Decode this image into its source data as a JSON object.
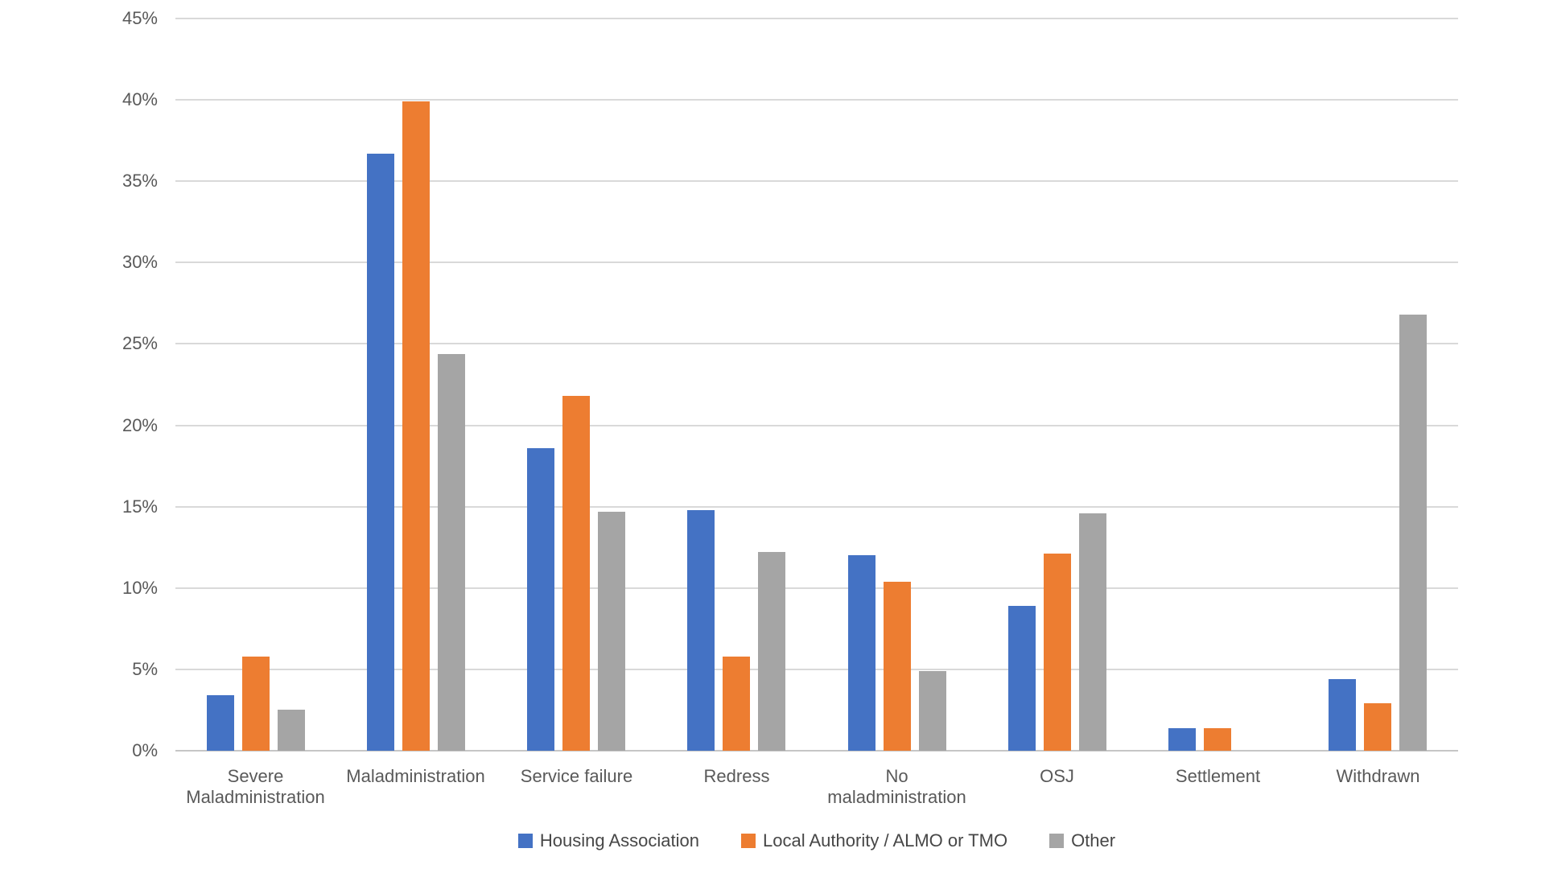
{
  "chart_data": {
    "type": "bar",
    "title": "",
    "xlabel": "",
    "ylabel": "",
    "categories": [
      "Severe Maladministration",
      "Maladministration",
      "Service failure",
      "Redress",
      "No maladministration",
      "OSJ",
      "Settlement",
      "Withdrawn"
    ],
    "category_label_lines": [
      [
        "Severe",
        "Maladministration"
      ],
      [
        "Maladministration"
      ],
      [
        "Service failure"
      ],
      [
        "Redress"
      ],
      [
        "No",
        "maladministration"
      ],
      [
        "OSJ"
      ],
      [
        "Settlement"
      ],
      [
        "Withdrawn"
      ]
    ],
    "series": [
      {
        "name": "Housing Association",
        "color": "#4472C4",
        "values": [
          3.4,
          36.7,
          18.6,
          14.8,
          12.0,
          8.9,
          1.4,
          4.4
        ]
      },
      {
        "name": "Local Authority / ALMO or TMO",
        "color": "#ED7D31",
        "values": [
          5.8,
          39.9,
          21.8,
          5.8,
          10.4,
          12.1,
          1.4,
          2.9
        ]
      },
      {
        "name": "Other",
        "color": "#A5A5A5",
        "values": [
          2.5,
          24.4,
          14.7,
          12.2,
          4.9,
          14.6,
          0,
          26.8
        ]
      }
    ],
    "ylim": [
      0,
      45
    ],
    "ytick_step": 5,
    "ytick_labels": [
      "0%",
      "5%",
      "10%",
      "15%",
      "20%",
      "25%",
      "30%",
      "35%",
      "40%",
      "45%"
    ],
    "grid": true,
    "legend_position": "bottom"
  },
  "colors": {
    "background": "#FFFFFF",
    "gridline": "#D9D9D9",
    "axis_line": "#C6C6C6",
    "tick_text": "#595959",
    "legend_text": "#474747"
  }
}
